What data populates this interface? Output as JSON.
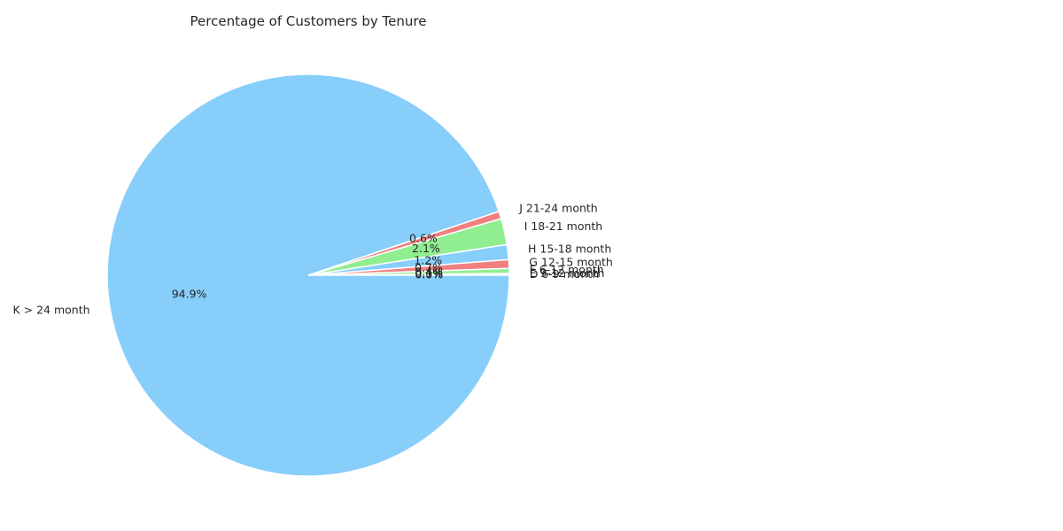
{
  "chart_data": {
    "type": "pie",
    "title": "Percentage of Customers by Tenure",
    "start_angle_deg": 0,
    "direction": "counterclockwise",
    "slices": [
      {
        "label": "D 6-9 month",
        "value": 0.05,
        "pct_label": "0.0%",
        "color": "#87CEFA"
      },
      {
        "label": "E 9-12 month",
        "value": 0.1,
        "pct_label": "0.1%",
        "color": "#90EE90"
      },
      {
        "label": "F 6-12 month",
        "value": 0.4,
        "pct_label": "0.4%",
        "color": "#90EE90"
      },
      {
        "label": "G 12-15 month",
        "value": 0.7,
        "pct_label": "0.7%",
        "color": "#F08080"
      },
      {
        "label": "H 15-18 month",
        "value": 1.2,
        "pct_label": "1.2%",
        "color": "#87CEFA"
      },
      {
        "label": "I 18-21 month",
        "value": 2.1,
        "pct_label": "2.1%",
        "color": "#90EE90"
      },
      {
        "label": "J 21-24 month",
        "value": 0.6,
        "pct_label": "0.6%",
        "color": "#F08080"
      },
      {
        "label": "K > 24 month",
        "value": 94.9,
        "pct_label": "94.9%",
        "color": "#87CEFA"
      }
    ]
  }
}
